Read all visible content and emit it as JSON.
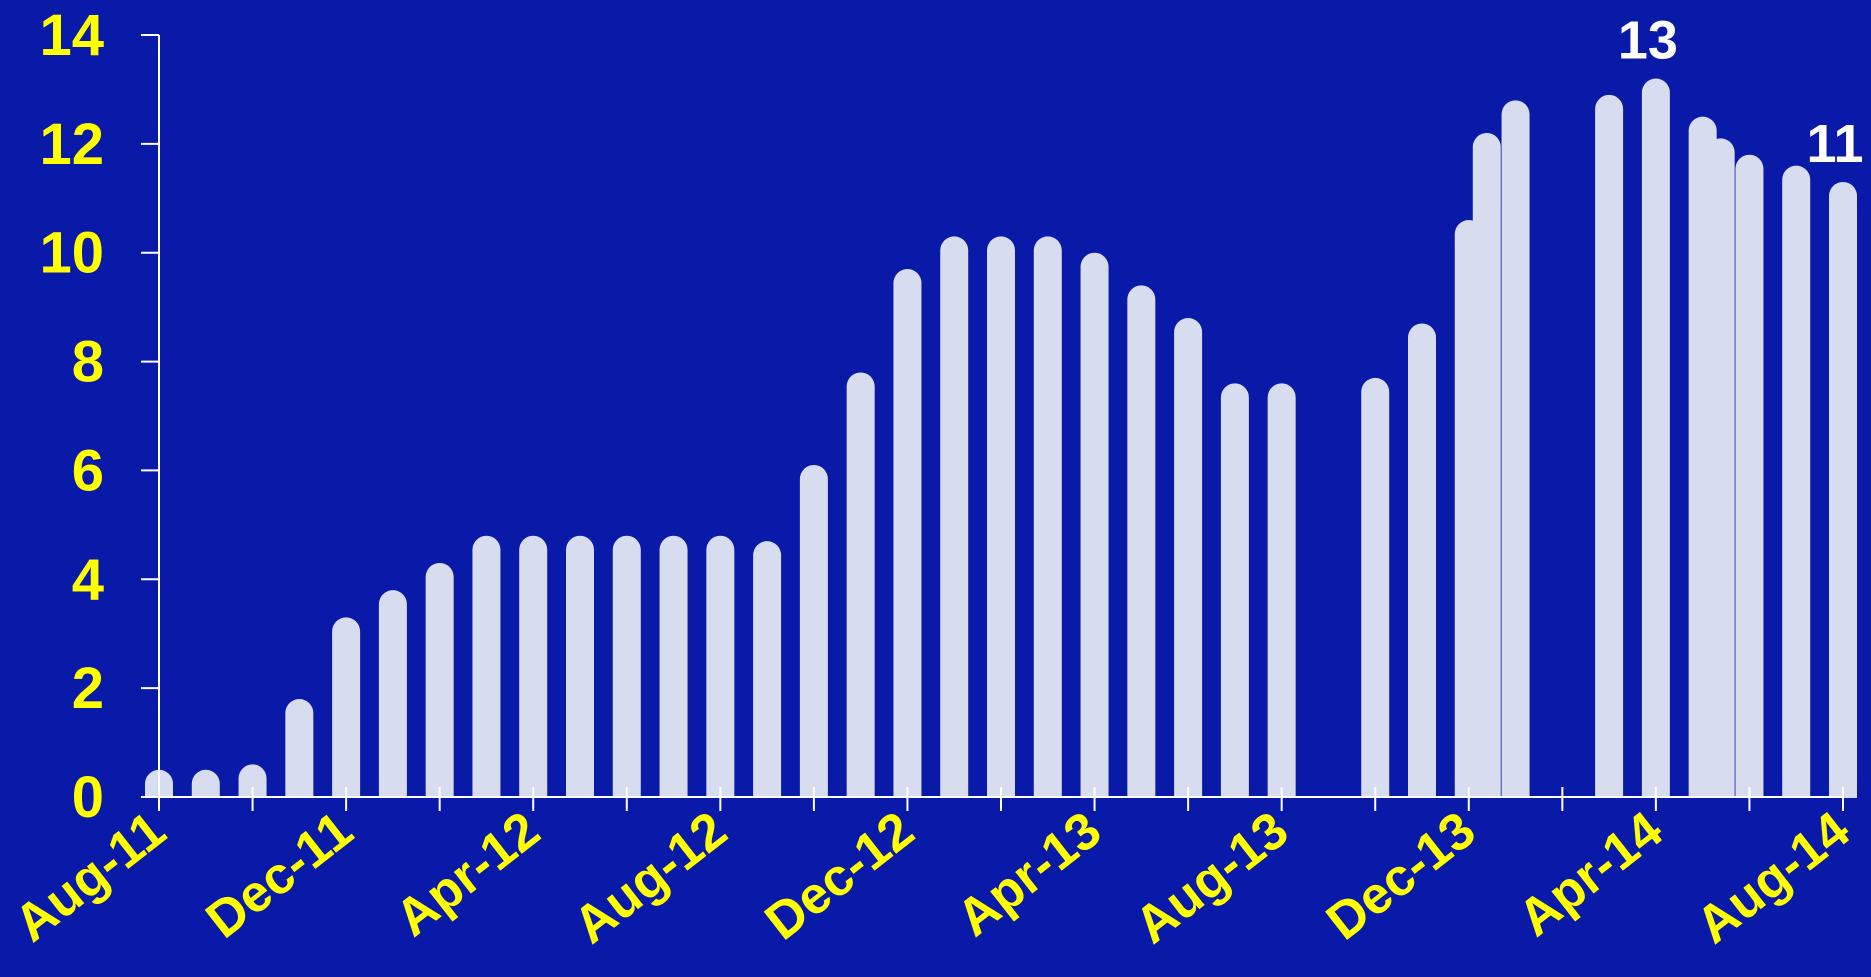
{
  "chart_data": {
    "type": "bar",
    "title": "",
    "xlabel": "",
    "ylabel": "",
    "ylim": [
      0,
      14
    ],
    "yticks": [
      0,
      2,
      4,
      6,
      8,
      10,
      12,
      14
    ],
    "x_tick_labels": [
      "Aug-11",
      "Dec-11",
      "Apr-12",
      "Aug-12",
      "Dec-12",
      "Apr-13",
      "Aug-13",
      "Dec-13",
      "Apr-14",
      "Aug-14"
    ],
    "grid": false,
    "legend": "none",
    "colors": {
      "background": "#0a1aa8",
      "bar": "#d8dcef",
      "tick_text": "#ffff00",
      "axis": "#ffffff",
      "data_label": "#ffffff"
    },
    "bars": [
      {
        "x": "2011-08",
        "value": 0.5
      },
      {
        "x": "2011-09",
        "value": 0.5
      },
      {
        "x": "2011-10",
        "value": 0.6
      },
      {
        "x": "2011-11",
        "value": 1.8
      },
      {
        "x": "2011-12",
        "value": 3.3
      },
      {
        "x": "2012-01",
        "value": 3.8
      },
      {
        "x": "2012-02",
        "value": 4.3
      },
      {
        "x": "2012-03",
        "value": 4.8
      },
      {
        "x": "2012-04",
        "value": 4.8
      },
      {
        "x": "2012-05",
        "value": 4.8
      },
      {
        "x": "2012-06",
        "value": 4.8
      },
      {
        "x": "2012-07",
        "value": 4.8
      },
      {
        "x": "2012-08",
        "value": 4.8
      },
      {
        "x": "2012-09",
        "value": 4.7
      },
      {
        "x": "2012-10",
        "value": 6.1
      },
      {
        "x": "2012-11",
        "value": 7.8
      },
      {
        "x": "2012-12",
        "value": 9.7
      },
      {
        "x": "2013-01",
        "value": 10.3
      },
      {
        "x": "2013-02",
        "value": 10.3
      },
      {
        "x": "2013-03",
        "value": 10.3
      },
      {
        "x": "2013-04",
        "value": 10.0
      },
      {
        "x": "2013-05",
        "value": 9.4
      },
      {
        "x": "2013-06",
        "value": 8.8
      },
      {
        "x": "2013-07",
        "value": 7.6
      },
      {
        "x": "2013-08",
        "value": 7.6
      },
      {
        "x": "2013-10",
        "value": 7.7
      },
      {
        "x": "2013-11",
        "value": 8.7
      },
      {
        "x": "2013-12",
        "value": 10.6
      },
      {
        "x": "2013-12",
        "value": 12.2
      },
      {
        "x": "2014-01",
        "value": 12.8
      },
      {
        "x": "2014-03",
        "value": 12.9
      },
      {
        "x": "2014-04",
        "value": 13.2,
        "label": "13"
      },
      {
        "x": "2014-05",
        "value": 12.5
      },
      {
        "x": "2014-05",
        "value": 12.1
      },
      {
        "x": "2014-06",
        "value": 11.8
      },
      {
        "x": "2014-07",
        "value": 11.6
      },
      {
        "x": "2014-08",
        "value": 11.3,
        "label": "11"
      }
    ]
  }
}
